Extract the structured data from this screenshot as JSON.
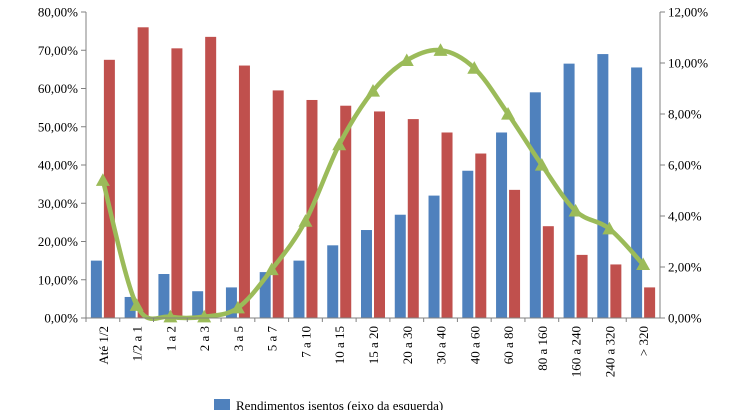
{
  "colors": {
    "blue_series": "#4f81bd",
    "red_series": "#c0504d",
    "green_series": "#9bbb59",
    "axis": "#808080",
    "background": "#ffffff"
  },
  "chart_data": {
    "type": "bar",
    "combined_with": "line",
    "categories": [
      "Até 1/2",
      "1/2 a 1",
      "1 a 2",
      "2 a 3",
      "3 a 5",
      "5 a 7",
      "7 a 10",
      "10 a 15",
      "15 a 20",
      "20 a 30",
      "30 a 40",
      "40 a 60",
      "60 a 80",
      "80 a 160",
      "160 a 240",
      "240 a 320",
      "> 320"
    ],
    "series": [
      {
        "name": "Rendimentos isentos (eixo da esquerda)",
        "type": "bar",
        "axis": "left",
        "color": "#4f81bd",
        "values": [
          15,
          5.5,
          11.5,
          7,
          8,
          12,
          15,
          19,
          23,
          27,
          32,
          38.5,
          48.5,
          59,
          66.5,
          69,
          65.5
        ]
      },
      {
        "type": "bar",
        "axis": "left",
        "color": "#c0504d",
        "values": [
          67.5,
          76,
          70.5,
          73.5,
          66,
          59.5,
          57,
          55.5,
          54,
          52,
          48.5,
          43,
          33.5,
          24,
          16.5,
          14,
          8
        ]
      },
      {
        "type": "line",
        "axis": "right",
        "color": "#9bbb59",
        "values": [
          5.4,
          0.5,
          0.05,
          0.05,
          0.4,
          1.9,
          3.8,
          6.8,
          8.9,
          10.1,
          10.5,
          9.8,
          8.0,
          6.0,
          4.2,
          3.5,
          2.1
        ]
      }
    ],
    "left_axis": {
      "ylim": [
        0,
        80
      ],
      "ticks": [
        "0,00%",
        "10,00%",
        "20,00%",
        "30,00%",
        "40,00%",
        "50,00%",
        "60,00%",
        "70,00%",
        "80,00%"
      ]
    },
    "right_axis": {
      "ylim": [
        0,
        12
      ],
      "ticks": [
        "0,00%",
        "2,00%",
        "4,00%",
        "6,00%",
        "8,00%",
        "10,00%",
        "12,00%"
      ]
    },
    "grid": false,
    "legend": {
      "placement": "bottom",
      "visible_entries": [
        "Rendimentos isentos (eixo da esquerda)"
      ]
    }
  }
}
